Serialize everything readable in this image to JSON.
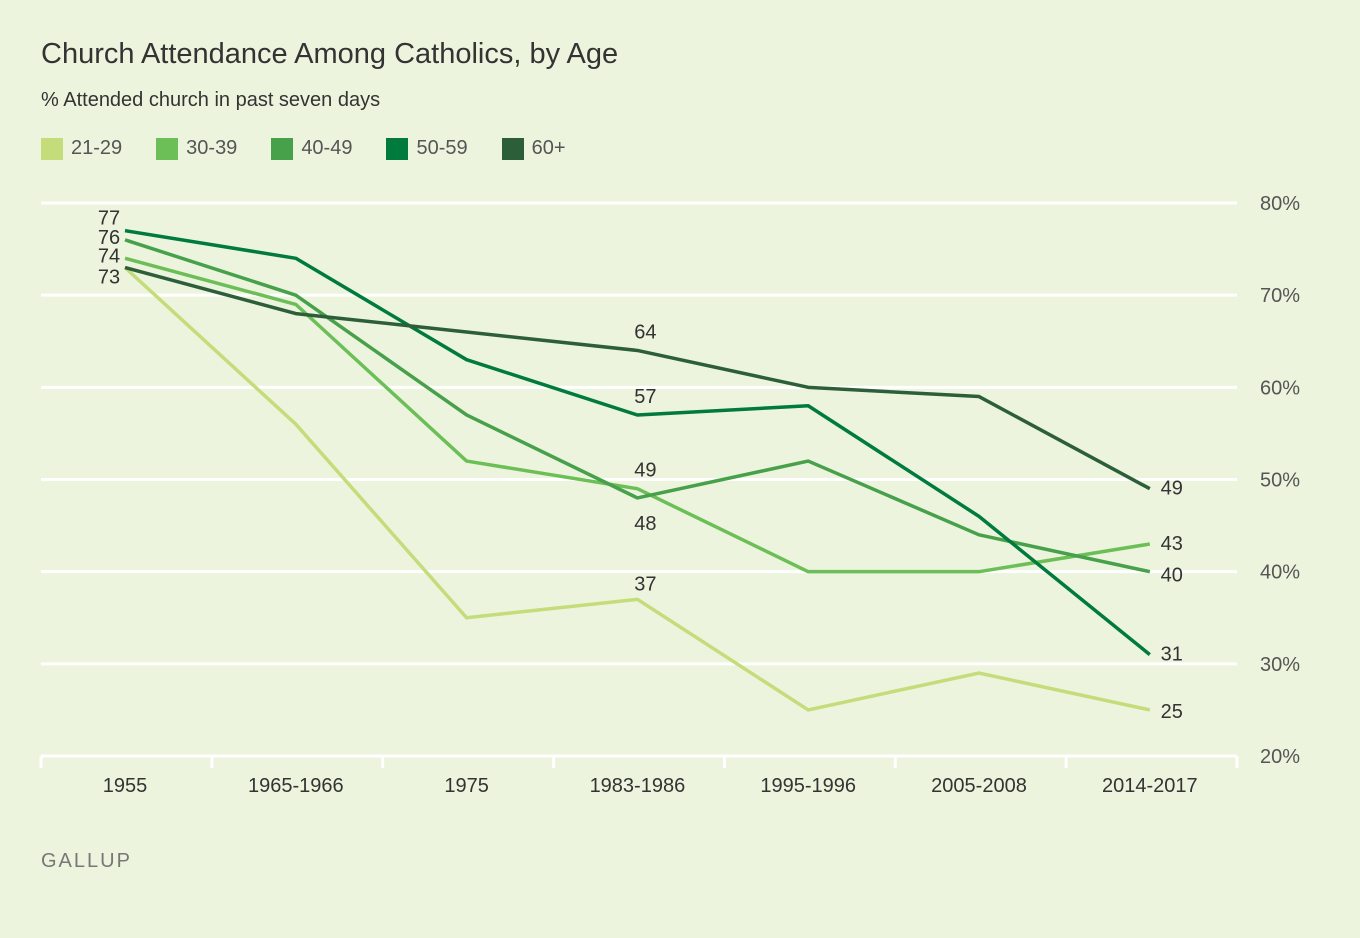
{
  "chart_data": {
    "type": "line",
    "title": "Church Attendance Among Catholics, by Age",
    "subtitle": "% Attended church in past seven days",
    "categories": [
      "1955",
      "1965-1966",
      "1975",
      "1983-1986",
      "1995-1996",
      "2005-2008",
      "2014-2017"
    ],
    "ylim": [
      20,
      80
    ],
    "yticks": [
      20,
      30,
      40,
      50,
      60,
      70,
      80
    ],
    "ytick_labels": [
      "20%",
      "30%",
      "40%",
      "50%",
      "60%",
      "70%",
      "80%"
    ],
    "grid": true,
    "legend_placement": "top-left",
    "series": [
      {
        "name": "21-29",
        "color": "#c5dc7a",
        "values": [
          73,
          56,
          35,
          37,
          25,
          29,
          25
        ],
        "labeled": [
          0,
          3,
          6
        ]
      },
      {
        "name": "30-39",
        "color": "#6cbf57",
        "values": [
          74,
          69,
          52,
          49,
          40,
          40,
          43
        ],
        "labeled": [
          0,
          3,
          6
        ]
      },
      {
        "name": "40-49",
        "color": "#47a04a",
        "values": [
          76,
          70,
          57,
          48,
          52,
          44,
          40
        ],
        "labeled": [
          0,
          3,
          6
        ]
      },
      {
        "name": "50-59",
        "color": "#007a3d",
        "values": [
          77,
          74,
          63,
          57,
          58,
          46,
          31
        ],
        "labeled": [
          0,
          3,
          6
        ]
      },
      {
        "name": "60+",
        "color": "#2d5e3a",
        "values": [
          73,
          68,
          66,
          64,
          60,
          59,
          49
        ],
        "labeled": [
          3,
          6
        ]
      }
    ]
  },
  "brand": "GALLUP",
  "colors": {
    "background": "#ecf4de",
    "grid": "#ffffff"
  }
}
